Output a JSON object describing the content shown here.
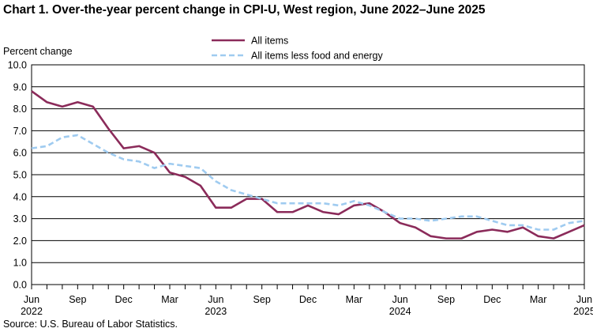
{
  "chart_data": {
    "type": "line",
    "title": "Chart 1. Over-the-year percent change in CPI-U, West region, June 2022–June 2025",
    "ylabel": "Percent change",
    "xlabel": "",
    "ylim": [
      0,
      10
    ],
    "yticks": [
      "0.0",
      "1.0",
      "2.0",
      "3.0",
      "4.0",
      "5.0",
      "6.0",
      "7.0",
      "8.0",
      "9.0",
      "10.0"
    ],
    "grid": true,
    "legend_position": "top-center",
    "x_tick_labels": [
      {
        "month": "Jun",
        "year": "2022",
        "index": 0
      },
      {
        "month": "Sep",
        "year": "",
        "index": 3
      },
      {
        "month": "Dec",
        "year": "",
        "index": 6
      },
      {
        "month": "Mar",
        "year": "",
        "index": 9
      },
      {
        "month": "Jun",
        "year": "2023",
        "index": 12
      },
      {
        "month": "Sep",
        "year": "",
        "index": 15
      },
      {
        "month": "Dec",
        "year": "",
        "index": 18
      },
      {
        "month": "Mar",
        "year": "",
        "index": 21
      },
      {
        "month": "Jun",
        "year": "2024",
        "index": 24
      },
      {
        "month": "Sep",
        "year": "",
        "index": 27
      },
      {
        "month": "Dec",
        "year": "",
        "index": 30
      },
      {
        "month": "Mar",
        "year": "",
        "index": 33
      },
      {
        "month": "Jun",
        "year": "2025",
        "index": 36
      }
    ],
    "series": [
      {
        "name": "All items",
        "color": "#8b2b5a",
        "style": "solid",
        "values": [
          8.8,
          8.3,
          8.1,
          8.3,
          8.1,
          7.1,
          6.2,
          6.3,
          6.0,
          5.1,
          4.9,
          4.5,
          3.5,
          3.5,
          3.9,
          3.9,
          3.3,
          3.3,
          3.6,
          3.3,
          3.2,
          3.6,
          3.7,
          3.3,
          2.8,
          2.6,
          2.2,
          2.1,
          2.1,
          2.4,
          2.5,
          2.4,
          2.6,
          2.2,
          2.1,
          2.4,
          2.7
        ]
      },
      {
        "name": "All items less food and energy",
        "color": "#9fcbf0",
        "style": "dashed",
        "values": [
          6.2,
          6.3,
          6.7,
          6.8,
          6.4,
          6.0,
          5.7,
          5.6,
          5.3,
          5.5,
          5.4,
          5.3,
          4.7,
          4.3,
          4.1,
          3.9,
          3.7,
          3.7,
          3.7,
          3.7,
          3.6,
          3.8,
          3.6,
          3.3,
          3.0,
          3.0,
          2.9,
          3.0,
          3.1,
          3.1,
          2.9,
          2.7,
          2.7,
          2.5,
          2.5,
          2.8,
          2.9
        ]
      }
    ]
  },
  "footer": {
    "source": "Source: U.S. Bureau of Labor Statistics."
  }
}
